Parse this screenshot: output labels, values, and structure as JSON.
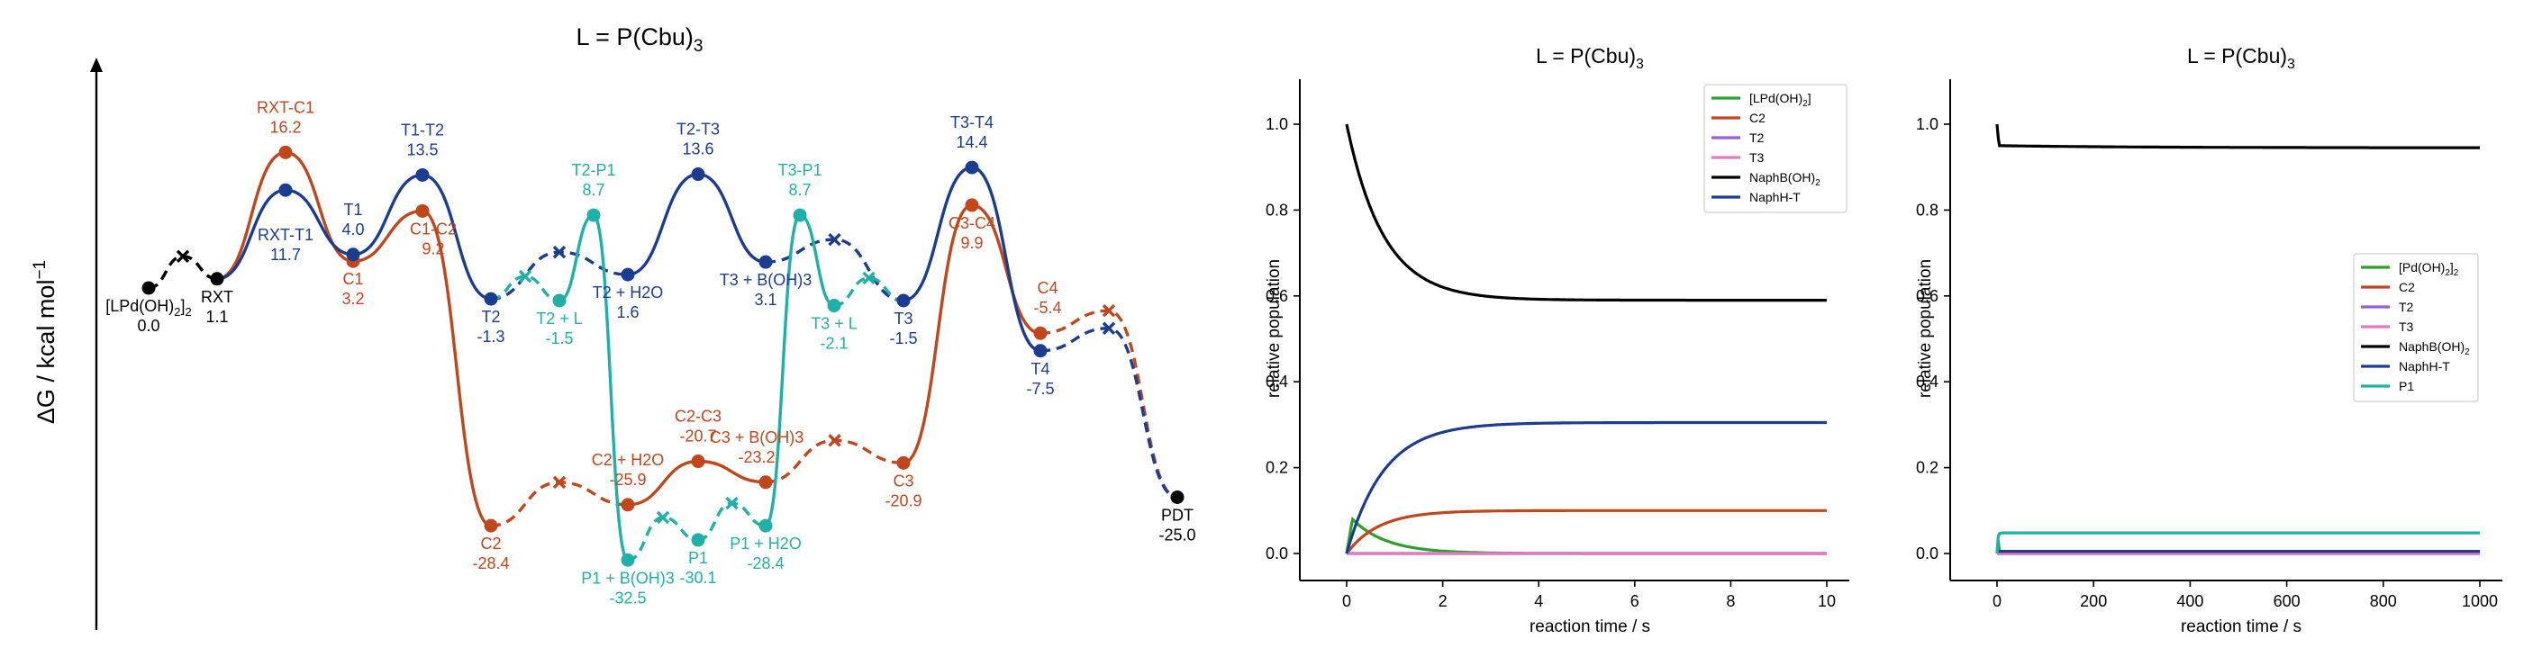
{
  "colors": {
    "black": "#000000",
    "orange": "#c0461b",
    "blue": "#1c3d8f",
    "teal": "#1fb0a8",
    "green": "#2ca02c",
    "purple": "#9a5fd0",
    "pink": "#e377c2"
  },
  "chart_data": [
    {
      "type": "energy_profile",
      "title": "L = P(Cbu)3",
      "title_main": "L = P(Cbu)",
      "title_sub": "3",
      "ylabel": "ΔG / kcal mol−1",
      "ylabel_main": "ΔG / kcal mol",
      "ylabel_sup": "−1",
      "states": [
        {
          "id": "LPd",
          "name": "[LPd(OH)2]2",
          "name_main": "[LPd(OH)",
          "name_sub": "2",
          "name_post": "]",
          "name_sub2": "2",
          "value": 0.0,
          "color": "black"
        },
        {
          "id": "RXT",
          "name": "RXT",
          "value": 1.1,
          "color": "black"
        },
        {
          "id": "RXT-C1",
          "name": "RXT-C1",
          "value": 16.2,
          "color": "orange"
        },
        {
          "id": "RXT-T1",
          "name": "RXT-T1",
          "value": 11.7,
          "color": "blue"
        },
        {
          "id": "C1",
          "name": "C1",
          "value": 3.2,
          "color": "orange"
        },
        {
          "id": "T1",
          "name": "T1",
          "value": 4.0,
          "color": "blue"
        },
        {
          "id": "T1-T2",
          "name": "T1-T2",
          "value": 13.5,
          "color": "blue"
        },
        {
          "id": "C1-C2",
          "name": "C1-C2",
          "value": 9.2,
          "color": "orange"
        },
        {
          "id": "T2",
          "name": "T2",
          "value": -1.3,
          "color": "blue"
        },
        {
          "id": "C2",
          "name": "C2",
          "value": -28.4,
          "color": "orange"
        },
        {
          "id": "T2+L",
          "name": "T2 + L",
          "value": -1.5,
          "color": "teal"
        },
        {
          "id": "T2-P1",
          "name": "T2-P1",
          "value": 8.7,
          "color": "teal"
        },
        {
          "id": "T2+H2O",
          "name": "T2 + H2O",
          "value": 1.6,
          "color": "blue"
        },
        {
          "id": "C2+H2O",
          "name": "C2 + H2O",
          "value": -25.9,
          "color": "orange"
        },
        {
          "id": "P1+B(OH)3",
          "name": "P1 + B(OH)3",
          "value": -32.5,
          "color": "teal"
        },
        {
          "id": "C2-C3",
          "name": "C2-C3",
          "value": -20.7,
          "color": "orange"
        },
        {
          "id": "P1",
          "name": "P1",
          "value": -30.1,
          "color": "teal"
        },
        {
          "id": "T2-T3",
          "name": "T2-T3",
          "value": 13.6,
          "color": "blue"
        },
        {
          "id": "P1+H2O",
          "name": "P1 + H2O",
          "value": -28.4,
          "color": "teal"
        },
        {
          "id": "C3+B(OH)3",
          "name": "C3 + B(OH)3",
          "value": -23.2,
          "color": "orange"
        },
        {
          "id": "T3+B(OH)3",
          "name": "T3 + B(OH)3",
          "value": 3.1,
          "color": "blue"
        },
        {
          "id": "T3-P1",
          "name": "T3-P1",
          "value": 8.7,
          "color": "teal"
        },
        {
          "id": "T3+L",
          "name": "T3 + L",
          "value": -2.1,
          "color": "teal"
        },
        {
          "id": "T3",
          "name": "T3",
          "value": -1.5,
          "color": "blue"
        },
        {
          "id": "C3",
          "name": "C3",
          "value": -20.9,
          "color": "orange"
        },
        {
          "id": "C3-C4",
          "name": "C3-C4",
          "value": 9.9,
          "color": "orange"
        },
        {
          "id": "T3-T4",
          "name": "T3-T4",
          "value": 14.4,
          "color": "blue"
        },
        {
          "id": "C4",
          "name": "C4",
          "value": -5.4,
          "color": "orange"
        },
        {
          "id": "T4",
          "name": "T4",
          "value": -7.5,
          "color": "blue"
        },
        {
          "id": "PDT",
          "name": "PDT",
          "value": -25.0,
          "color": "black"
        }
      ]
    },
    {
      "type": "line",
      "title": "L = P(Cbu)3",
      "title_main": "L = P(Cbu)",
      "title_sub": "3",
      "xlabel": "reaction time / s",
      "ylabel": "relative population",
      "xlim": [
        0,
        10
      ],
      "ylim": [
        0,
        1.0
      ],
      "xticks": [
        "0",
        "2",
        "4",
        "6",
        "8",
        "10"
      ],
      "yticks": [
        "0.0",
        "0.2",
        "0.4",
        "0.6",
        "0.8",
        "1.0"
      ],
      "legend_position": "top-right",
      "series": [
        {
          "name": "[LPd(OH)2]",
          "name_main": "[LPd(OH)",
          "name_sub": "2",
          "name_post": "]",
          "color": "green",
          "model": "pulse",
          "peak_t": 0.12,
          "peak": 0.08,
          "decay": 1.4
        },
        {
          "name": "C2",
          "color": "orange",
          "model": "rise",
          "final": 0.1,
          "rate": 1.5
        },
        {
          "name": "T2",
          "color": "purple",
          "model": "flat",
          "final": 0.0
        },
        {
          "name": "T3",
          "color": "pink",
          "model": "flat",
          "final": 0.0
        },
        {
          "name": "NaphB(OH)2",
          "name_main": "NaphB(OH)",
          "name_sub": "2",
          "color": "black",
          "model": "decay",
          "start": 1.0,
          "final": 0.59,
          "rate": 1.3
        },
        {
          "name": "NaphH-T",
          "color": "blue",
          "model": "rise",
          "final": 0.305,
          "rate": 1.3
        }
      ]
    },
    {
      "type": "line",
      "title": "L = P(Cbu)3",
      "title_main": "L = P(Cbu)",
      "title_sub": "3",
      "xlabel": "reaction time / s",
      "ylabel": "relative population",
      "xlim": [
        0,
        1000
      ],
      "ylim": [
        0,
        1.0
      ],
      "xticks": [
        "0",
        "200",
        "400",
        "600",
        "800",
        "1000"
      ],
      "yticks": [
        "0.0",
        "0.2",
        "0.4",
        "0.6",
        "0.8",
        "1.0"
      ],
      "legend_position": "center-right",
      "series": [
        {
          "name": "[Pd(OH)2]2",
          "name_main": "[Pd(OH)",
          "name_sub": "2",
          "name_post": "]",
          "name_sub2": "2",
          "color": "green",
          "model": "spike",
          "start": 0.05,
          "final": 0.0
        },
        {
          "name": "C2",
          "color": "orange",
          "model": "flat",
          "final": 0.0
        },
        {
          "name": "T2",
          "color": "purple",
          "model": "flat",
          "final": 0.0
        },
        {
          "name": "T3",
          "color": "pink",
          "model": "flat",
          "final": 0.0
        },
        {
          "name": "NaphB(OH)2",
          "name_main": "NaphB(OH)",
          "name_sub": "2",
          "color": "black",
          "model": "decay2",
          "start": 1.0,
          "mid": 0.95,
          "final": 0.945
        },
        {
          "name": "NaphH-T",
          "color": "blue",
          "model": "flat",
          "final": 0.005
        },
        {
          "name": "P1",
          "color": "teal",
          "model": "rise2",
          "final": 0.048
        }
      ]
    }
  ]
}
